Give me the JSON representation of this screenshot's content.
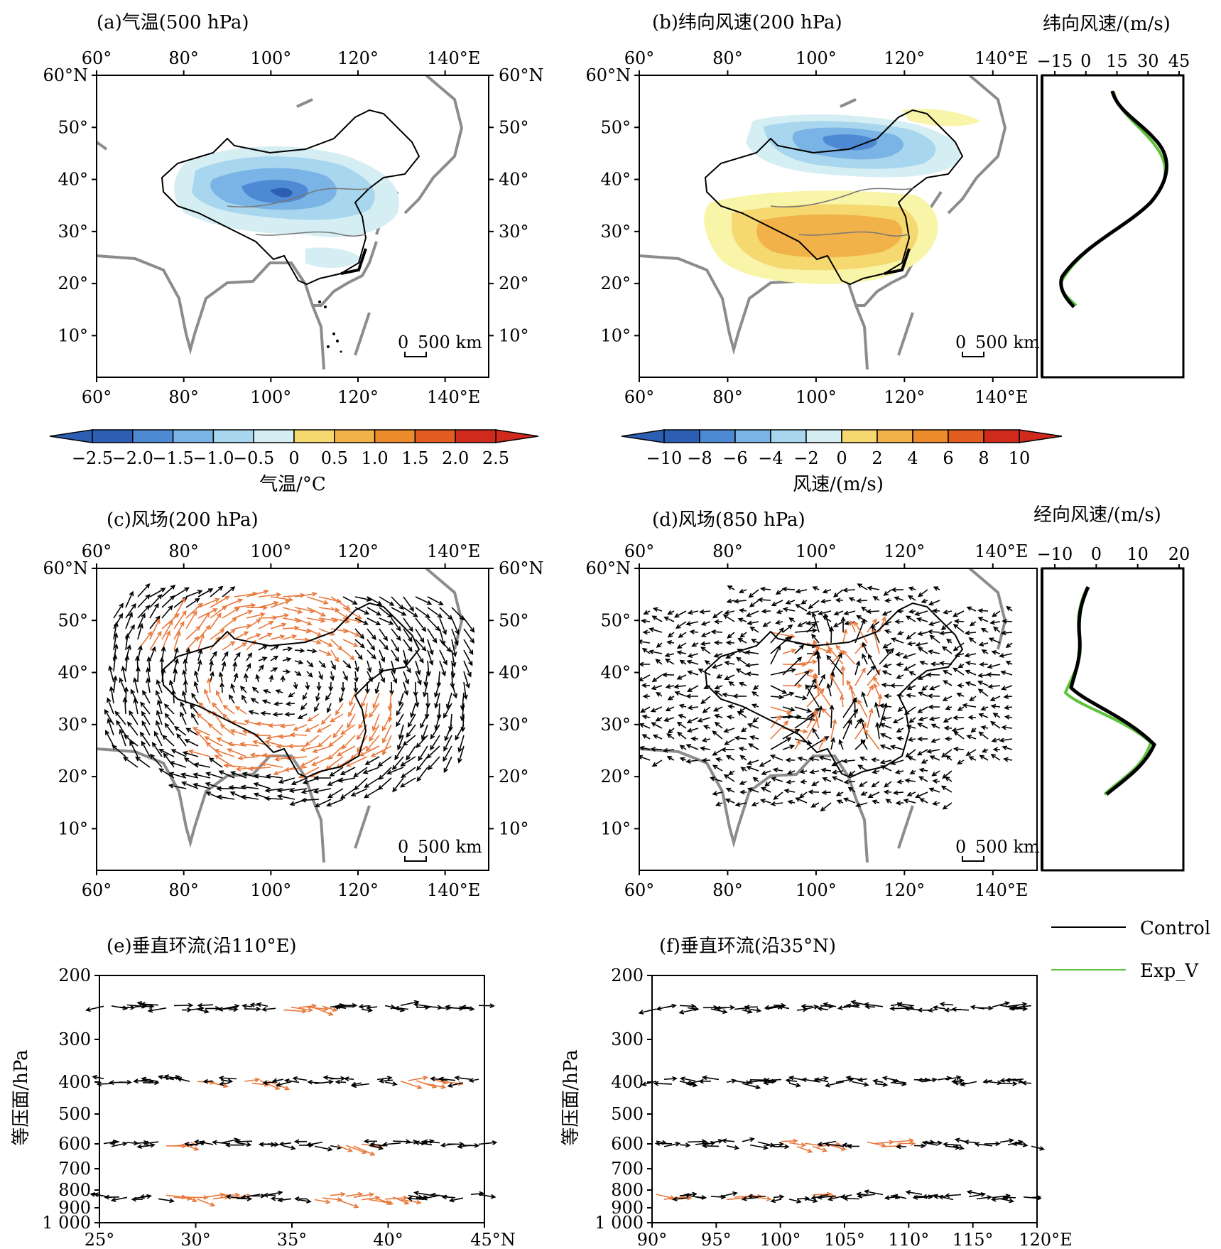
{
  "panels": {
    "a": {
      "title": "(a)气温(500 hPa)"
    },
    "b": {
      "title": "(b)纬向风速(200 hPa)",
      "profile_title": "纬向风速/(m/s)",
      "profile_ticks": [
        "−15",
        "0",
        "15",
        "30",
        "45"
      ]
    },
    "c": {
      "title": "(c)风场(200 hPa)"
    },
    "d": {
      "title": "(d)风场(850 hPa)",
      "profile_title": "经向风速/(m/s)",
      "profile_ticks": [
        "−10",
        "0",
        "10",
        "20"
      ]
    },
    "e": {
      "title": "(e)垂直环流(沿110°E)",
      "x_ticks": [
        "25°",
        "30°",
        "35°",
        "40°",
        "45°N"
      ]
    },
    "f": {
      "title": "(f)垂直环流(沿35°N)",
      "x_ticks": [
        "90°",
        "95°",
        "100°",
        "105°",
        "110°",
        "115°",
        "120°E"
      ]
    }
  },
  "map_axes": {
    "lon_top": [
      "60°",
      "80°",
      "100°",
      "120°",
      "140°E"
    ],
    "lon_bottom": [
      "60°",
      "80°",
      "100°",
      "120°",
      "140°E"
    ],
    "lat_left": [
      "60°N",
      "50°",
      "40°",
      "30°",
      "20°",
      "10°"
    ],
    "lat_right": [
      "60°N",
      "50°",
      "40°",
      "30°",
      "20°",
      "10°"
    ]
  },
  "scale_bar": {
    "zero": "0",
    "label": "500 km"
  },
  "colorbars": {
    "temperature": {
      "ticks": [
        "−2.5",
        "−2.0",
        "−1.5",
        "−1.0",
        "−0.5",
        "0",
        "0.5",
        "1.0",
        "1.5",
        "2.0",
        "2.5"
      ],
      "label": "气温/°C"
    },
    "wind": {
      "ticks": [
        "−10",
        "−8",
        "−6",
        "−4",
        "−2",
        "0",
        "2",
        "4",
        "6",
        "8",
        "10"
      ],
      "label": "风速/(m/s)"
    },
    "colors": [
      "#2c5fb4",
      "#4e8ad4",
      "#7ab4e6",
      "#a8d6ee",
      "#d4eef4",
      "#f8f4a8",
      "#f6d870",
      "#f2b24a",
      "#ec8c2c",
      "#e25c20",
      "#d02a1c"
    ]
  },
  "pressure_axis": {
    "label": "等压面/hPa",
    "ticks": [
      "200",
      "300",
      "400",
      "500",
      "600",
      "700",
      "800",
      "900",
      "1 000"
    ]
  },
  "legend": [
    {
      "name": "Control",
      "color": "#000000"
    },
    {
      "name": "Exp_V",
      "color": "#5cc23a"
    }
  ],
  "vector_colors": {
    "significant": "#e8783c",
    "normal": "#000000"
  }
}
